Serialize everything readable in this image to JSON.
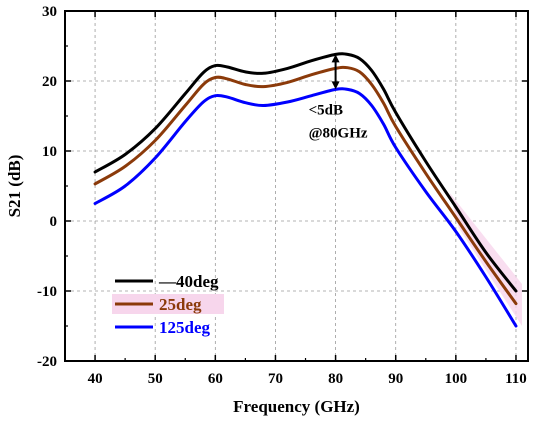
{
  "chart_data": {
    "type": "line",
    "xlabel": "Frequency (GHz)",
    "ylabel": "S21 (dB)",
    "xlim": [
      35,
      112
    ],
    "ylim": [
      -20,
      30
    ],
    "xticks": [
      40,
      50,
      60,
      70,
      80,
      90,
      100,
      110
    ],
    "yticks": [
      -20,
      -10,
      0,
      10,
      20,
      30
    ],
    "grid": true,
    "legend_placement": "bottom-left",
    "series": [
      {
        "name": "—40deg",
        "color": "#000000",
        "x": [
          40,
          45,
          50,
          55,
          58,
          60,
          62,
          65,
          68,
          72,
          76,
          80,
          82,
          84,
          86,
          88,
          90,
          95,
          100,
          105,
          110
        ],
        "y": [
          7.0,
          9.5,
          13.2,
          18.2,
          21.2,
          22.2,
          22.0,
          21.3,
          21.1,
          21.8,
          22.9,
          23.8,
          23.8,
          23.2,
          21.5,
          18.8,
          15.5,
          8.5,
          2.0,
          -4.5,
          -10.0
        ]
      },
      {
        "name": "25deg",
        "color": "#8B3A0A",
        "x": [
          40,
          45,
          50,
          55,
          58,
          60,
          62,
          65,
          68,
          72,
          76,
          80,
          82,
          84,
          86,
          88,
          90,
          95,
          100,
          105,
          110
        ],
        "y": [
          5.3,
          7.8,
          11.5,
          16.5,
          19.5,
          20.5,
          20.3,
          19.5,
          19.2,
          19.8,
          20.9,
          21.8,
          21.9,
          21.3,
          19.5,
          16.8,
          13.5,
          6.8,
          0.5,
          -5.8,
          -11.8
        ]
      },
      {
        "name": "125deg",
        "color": "#0000FF",
        "x": [
          40,
          45,
          50,
          55,
          58,
          60,
          62,
          65,
          68,
          72,
          76,
          80,
          82,
          84,
          86,
          88,
          90,
          95,
          100,
          105,
          110
        ],
        "y": [
          2.5,
          5.0,
          9.0,
          14.2,
          17.0,
          17.9,
          17.7,
          16.9,
          16.5,
          17.0,
          17.9,
          18.8,
          18.8,
          18.2,
          16.5,
          13.8,
          10.5,
          4.2,
          -1.5,
          -8.0,
          -15.0
        ]
      }
    ],
    "annotation": {
      "line1": "<5dB",
      "line2": "@80GHz",
      "x": 80,
      "y_top": 23.8,
      "y_bottom": 18.8
    }
  }
}
